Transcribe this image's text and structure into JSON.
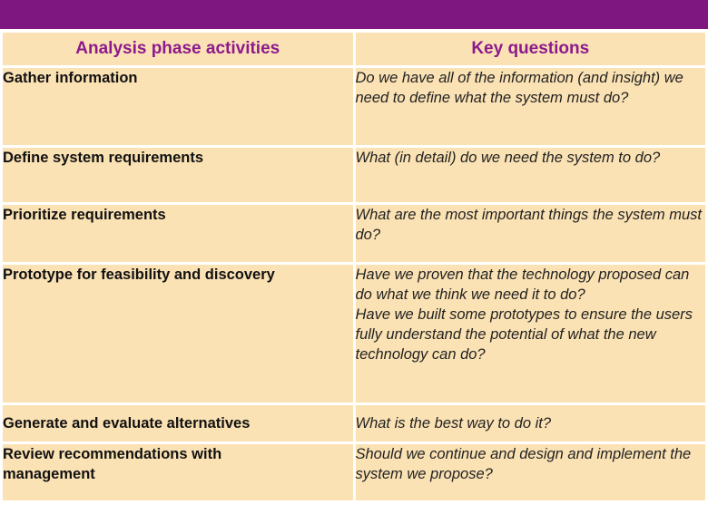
{
  "header": {
    "activities_label": "Analysis phase activities",
    "questions_label": "Key questions"
  },
  "rows": [
    {
      "activity": "Gather information",
      "question": "Do we have all of the information (and insight) we need to define what the system must do?"
    },
    {
      "activity": "Define system requirements",
      "question": "What (in detail) do we need the system to do?"
    },
    {
      "activity": "Prioritize requirements",
      "question": "What are the most important things the system must do?"
    },
    {
      "activity": "Prototype for feasibility and discovery",
      "question": "Have we proven that the technology proposed can do what we think we need it to do?",
      "question_2": "Have we built some prototypes to ensure the users fully understand the potential of what the new technology can do?"
    },
    {
      "activity": "Generate and evaluate alternatives",
      "question": "What is the best way to do it?"
    },
    {
      "activity": "Review recommendations with management",
      "question": "Should we continue and design and implement the system we propose?"
    }
  ],
  "colors": {
    "top_bar": "#7e1780",
    "header_text": "#8d1a8d",
    "cell_background": "#fbe2b4"
  }
}
